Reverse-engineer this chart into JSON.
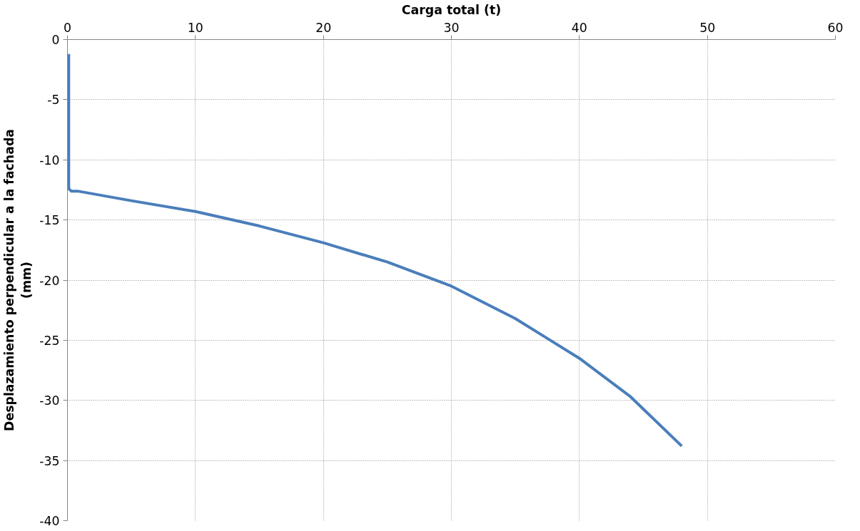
{
  "chart_data": {
    "type": "line",
    "xlabel": "Carga total (t)",
    "ylabel": "Desplazamiento perpendicular a la fachada\n(mm)",
    "xlim": [
      0,
      60
    ],
    "xticks": [
      0,
      10,
      20,
      30,
      40,
      50,
      60
    ],
    "ylim": [
      -40,
      0
    ],
    "yticks": [
      0,
      -5,
      -10,
      -15,
      -20,
      -25,
      -30,
      -35,
      -40
    ],
    "grid": true,
    "series": [
      {
        "color": "#4a7ebb",
        "x": [
          0.1,
          0.1,
          0.3,
          0.8,
          5,
          10,
          15,
          20,
          25,
          30,
          35,
          40,
          44,
          48
        ],
        "values": [
          -1.2,
          -12.4,
          -12.6,
          -12.6,
          -13.4,
          -14.3,
          -15.5,
          -16.9,
          -18.5,
          -20.5,
          -23.2,
          -26.5,
          -29.7,
          -33.8
        ]
      }
    ]
  }
}
